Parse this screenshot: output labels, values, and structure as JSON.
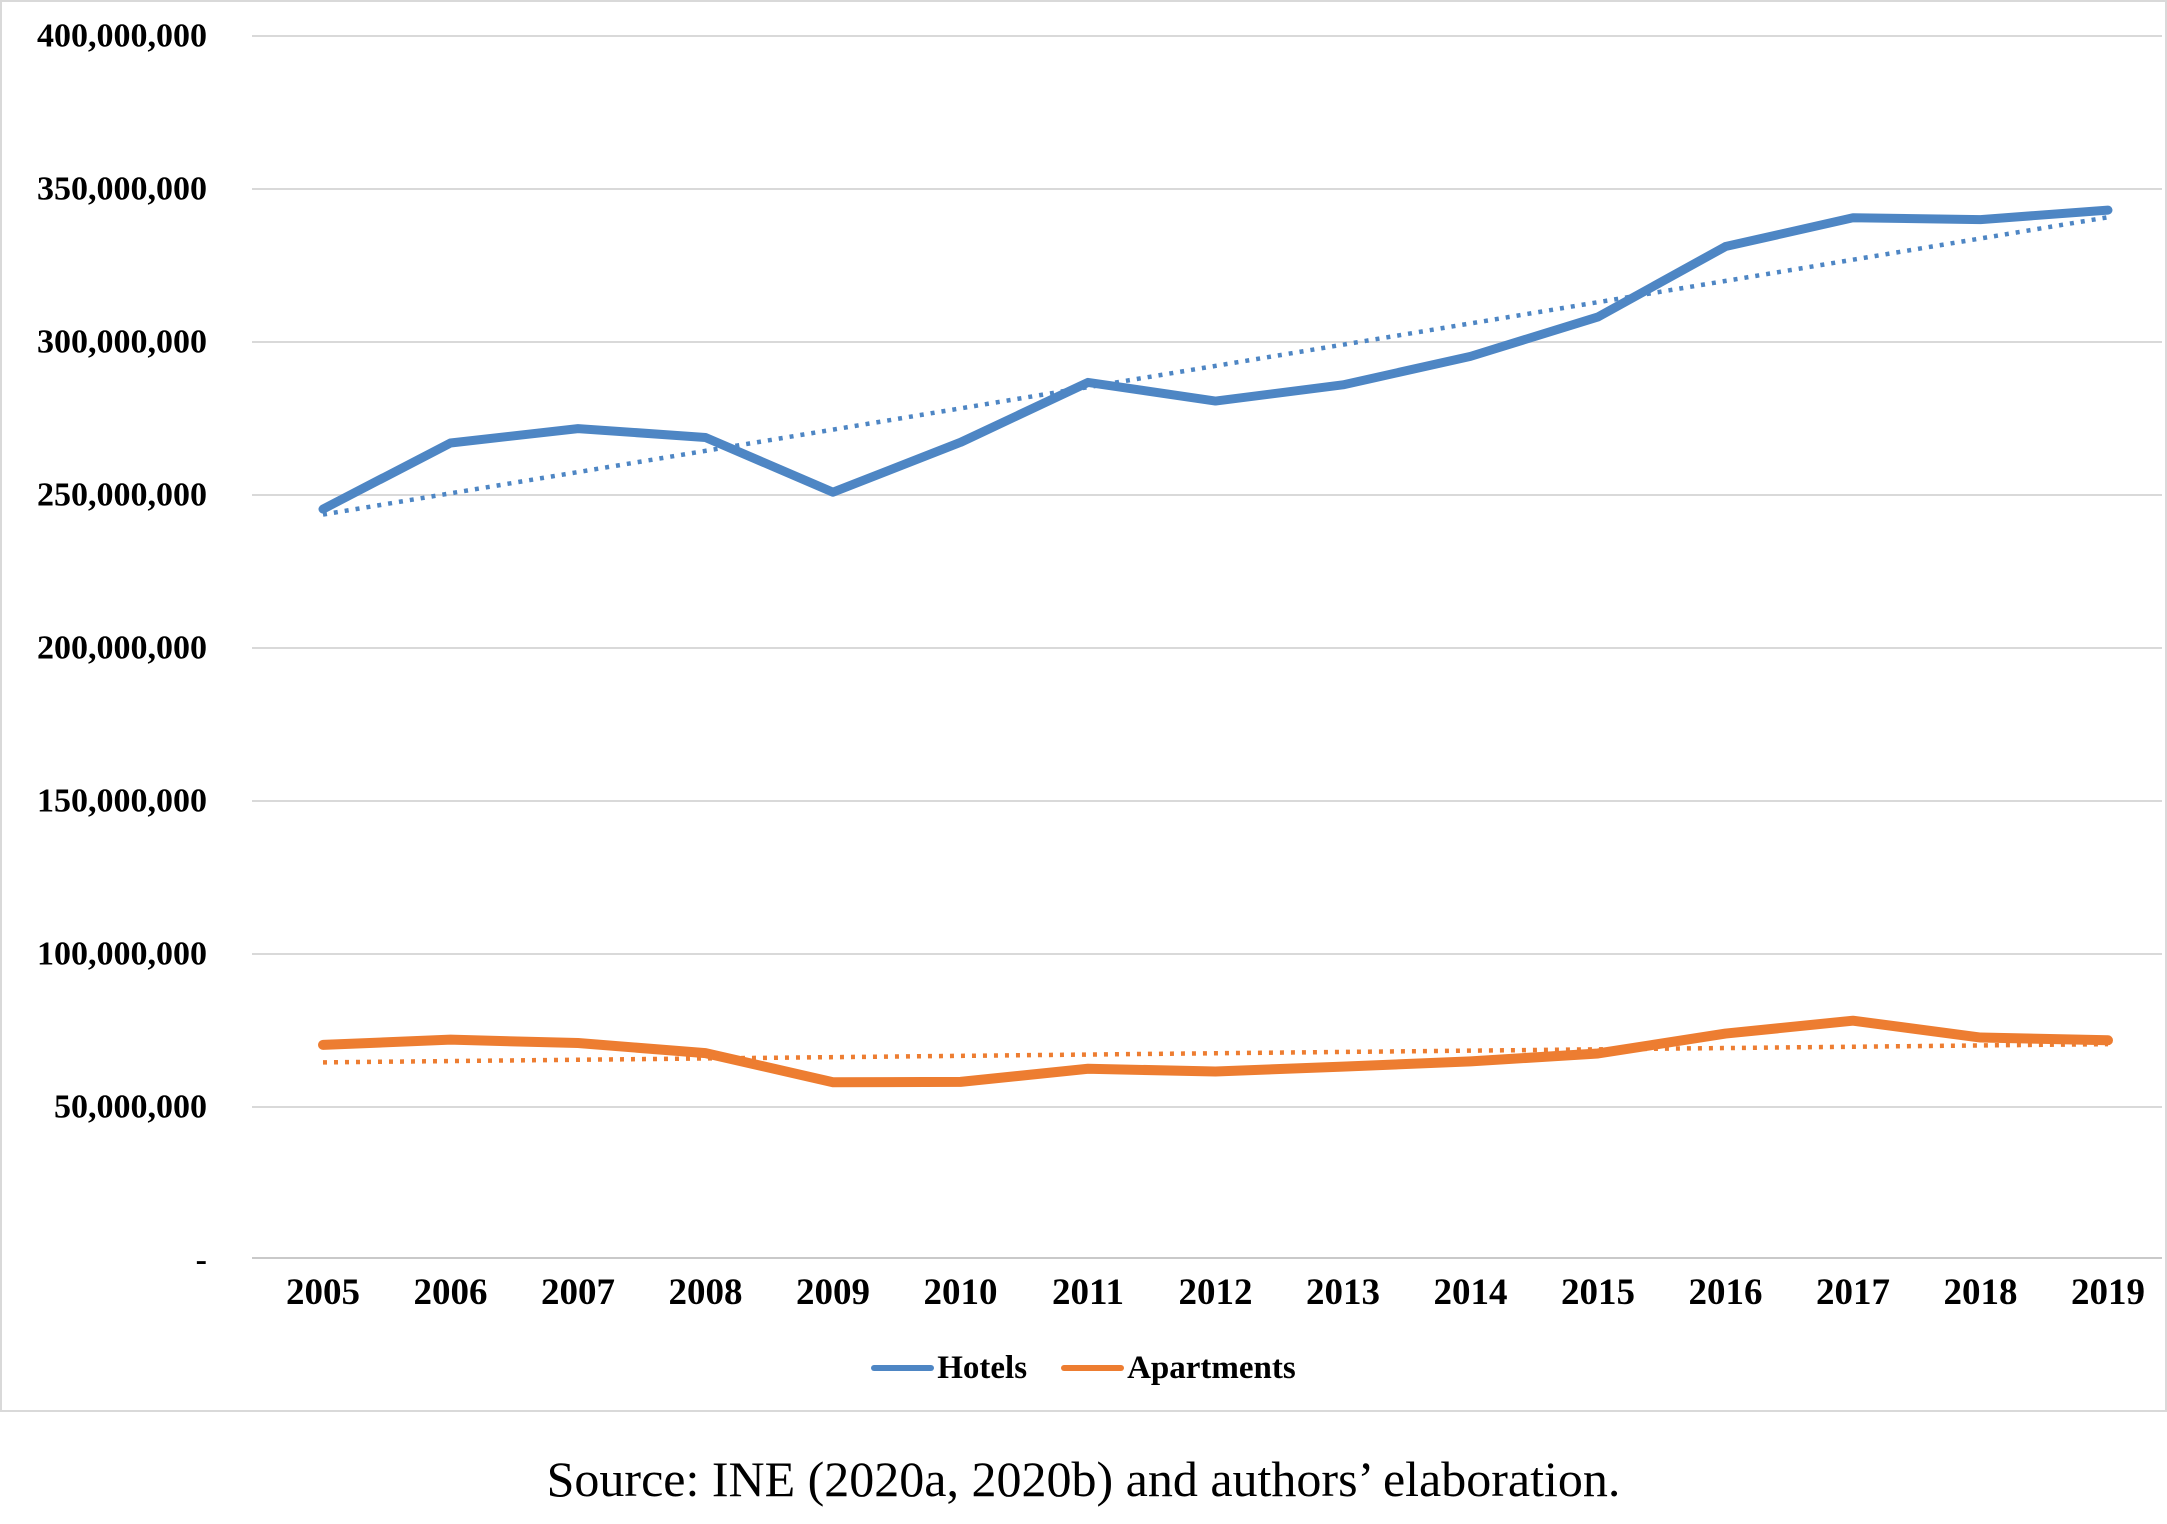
{
  "chart_data": {
    "type": "line",
    "categories": [
      "2005",
      "2006",
      "2007",
      "2008",
      "2009",
      "2010",
      "2011",
      "2012",
      "2013",
      "2014",
      "2015",
      "2016",
      "2017",
      "2018",
      "2019"
    ],
    "series": [
      {
        "name": "Hotels",
        "color": "#4E86C4",
        "values_millions": [
          245.4,
          267.0,
          271.7,
          268.8,
          250.9,
          267.2,
          286.8,
          280.7,
          286.0,
          295.3,
          308.2,
          331.2,
          340.6,
          340.0,
          343.1
        ],
        "trendline": "linear-dotted"
      },
      {
        "name": "Apartments",
        "color": "#ED7D31",
        "values_millions": [
          70.3,
          72.0,
          70.9,
          67.6,
          58.1,
          58.2,
          62.5,
          61.6,
          63.2,
          64.9,
          67.5,
          74.0,
          78.2,
          72.7,
          71.8
        ],
        "trendline": "linear-dotted"
      }
    ],
    "title": "",
    "xlabel": "",
    "ylabel": "",
    "ylim": [
      0,
      400000000
    ],
    "yticks_millions": [
      0,
      50,
      100,
      150,
      200,
      250,
      300,
      350,
      400
    ],
    "ytick_labels": [
      "-",
      "50,000,000",
      "100,000,000",
      "150,000,000",
      "200,000,000",
      "250,000,000",
      "300,000,000",
      "350,000,000",
      "400,000,000"
    ],
    "grid": "horizontal",
    "legend_position": "bottom"
  },
  "caption": {
    "text": "Source: INE (2020a, 2020b) and authors’ elaboration."
  }
}
